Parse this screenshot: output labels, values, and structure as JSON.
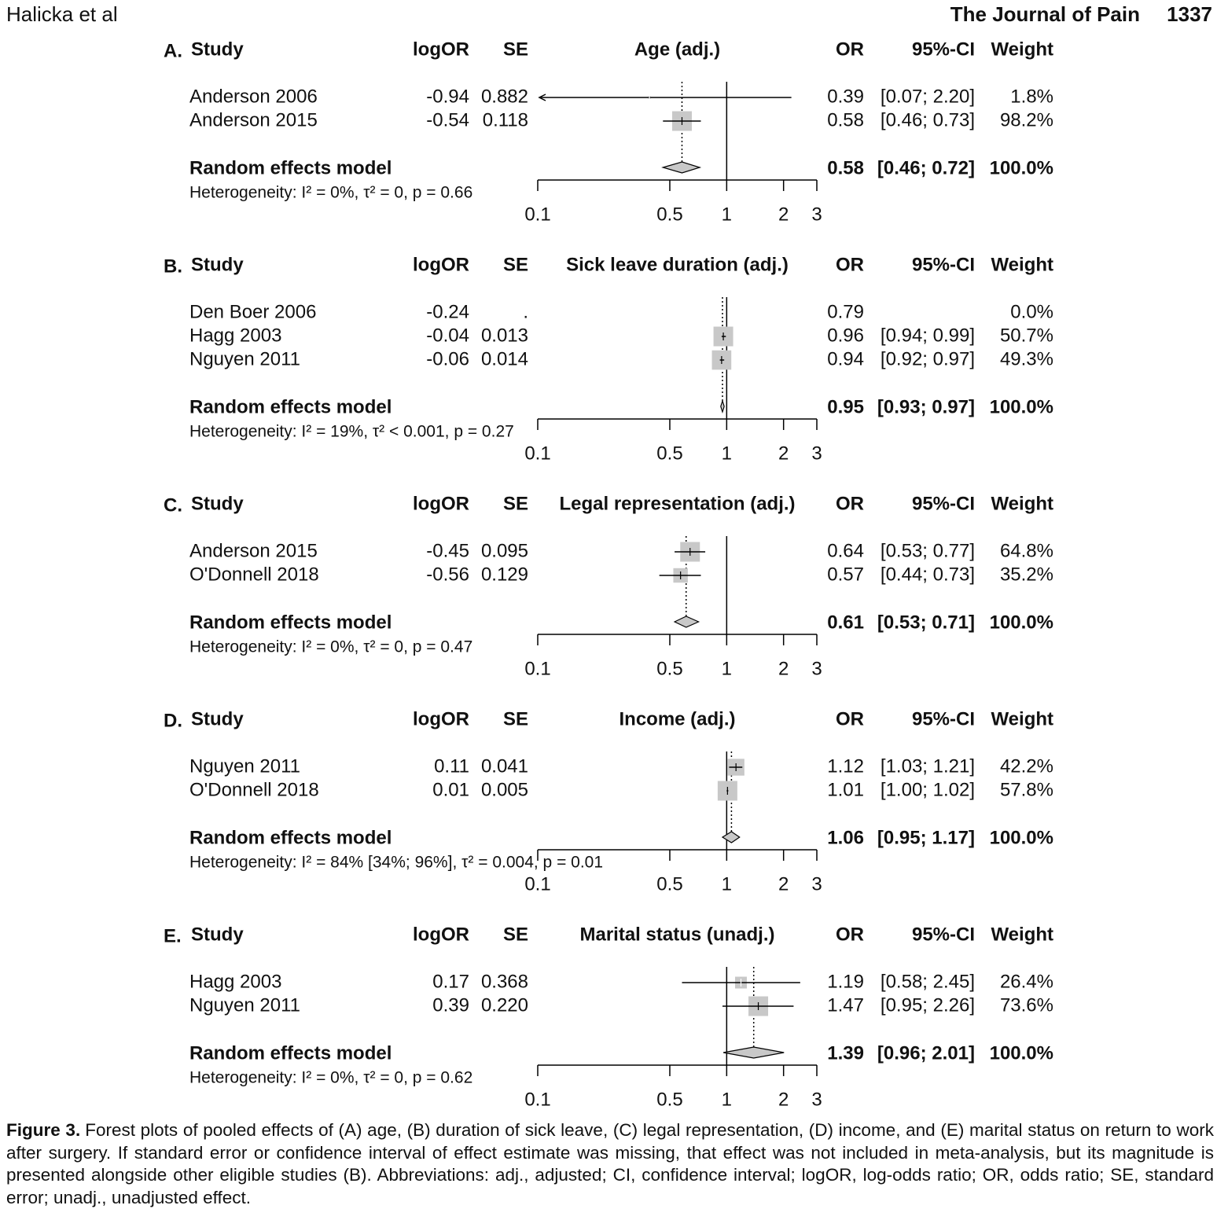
{
  "header": {
    "authors": "Halicka et al",
    "journal": "The Journal of Pain",
    "page": "1337"
  },
  "chart_data": [
    {
      "type": "forest",
      "label": "A.",
      "title": "Age (adj.)",
      "columns": {
        "study": "Study",
        "logOR": "logOR",
        "se": "SE",
        "or": "OR",
        "ci": "95%-CI",
        "weight": "Weight"
      },
      "studies": [
        {
          "name": "Anderson 2006",
          "logOR": -0.94,
          "se": "0.882",
          "or": 0.39,
          "ci_lower": 0.07,
          "ci_upper": 2.2,
          "ci_label": "[0.07; 2.20]",
          "weight": 1.8,
          "weight_label": "1.8%"
        },
        {
          "name": "Anderson 2015",
          "logOR": -0.54,
          "se": "0.118",
          "or": 0.58,
          "ci_lower": 0.46,
          "ci_upper": 0.73,
          "ci_label": "[0.46; 0.73]",
          "weight": 98.2,
          "weight_label": "98.2%"
        }
      ],
      "pooled": {
        "name": "Random effects model",
        "or": 0.58,
        "ci_lower": 0.46,
        "ci_upper": 0.72,
        "ci_label": "[0.46; 0.72]",
        "weight": 100,
        "weight_label": "100.0%"
      },
      "heterogeneity": "Heterogeneity: I² = 0%, τ² = 0, p = 0.66",
      "xlim": [
        0.1,
        3
      ],
      "xticks": [
        0.1,
        0.5,
        1,
        2,
        3
      ],
      "log_x": true,
      "reference_line": 1,
      "box_color": "#c8c8c8"
    },
    {
      "type": "forest",
      "label": "B.",
      "title": "Sick leave duration (adj.)",
      "columns": {
        "study": "Study",
        "logOR": "logOR",
        "se": "SE",
        "or": "OR",
        "ci": "95%-CI",
        "weight": "Weight"
      },
      "studies": [
        {
          "name": "Den Boer 2006",
          "logOR": -0.24,
          "se": ".",
          "or": 0.79,
          "ci_lower": null,
          "ci_upper": null,
          "ci_label": null,
          "weight": 0,
          "weight_label": "0.0%"
        },
        {
          "name": "Hagg 2003",
          "logOR": -0.04,
          "se": "0.013",
          "or": 0.96,
          "ci_lower": 0.94,
          "ci_upper": 0.99,
          "ci_label": "[0.94; 0.99]",
          "weight": 50.7,
          "weight_label": "50.7%"
        },
        {
          "name": "Nguyen 2011",
          "logOR": -0.06,
          "se": "0.014",
          "or": 0.94,
          "ci_lower": 0.92,
          "ci_upper": 0.97,
          "ci_label": "[0.92; 0.97]",
          "weight": 49.3,
          "weight_label": "49.3%"
        }
      ],
      "pooled": {
        "name": "Random effects model",
        "or": 0.95,
        "ci_lower": 0.93,
        "ci_upper": 0.97,
        "ci_label": "[0.93; 0.97]",
        "weight": 100,
        "weight_label": "100.0%"
      },
      "heterogeneity": "Heterogeneity: I² = 19%, τ² < 0.001, p = 0.27",
      "xlim": [
        0.1,
        3
      ],
      "xticks": [
        0.1,
        0.5,
        1,
        2,
        3
      ],
      "log_x": true,
      "reference_line": 1,
      "box_color": "#c8c8c8"
    },
    {
      "type": "forest",
      "label": "C.",
      "title": "Legal representation (adj.)",
      "columns": {
        "study": "Study",
        "logOR": "logOR",
        "se": "SE",
        "or": "OR",
        "ci": "95%-CI",
        "weight": "Weight"
      },
      "studies": [
        {
          "name": "Anderson 2015",
          "logOR": -0.45,
          "se": "0.095",
          "or": 0.64,
          "ci_lower": 0.53,
          "ci_upper": 0.77,
          "ci_label": "[0.53; 0.77]",
          "weight": 64.8,
          "weight_label": "64.8%"
        },
        {
          "name": "O'Donnell 2018",
          "logOR": -0.56,
          "se": "0.129",
          "or": 0.57,
          "ci_lower": 0.44,
          "ci_upper": 0.73,
          "ci_label": "[0.44; 0.73]",
          "weight": 35.2,
          "weight_label": "35.2%"
        }
      ],
      "pooled": {
        "name": "Random effects model",
        "or": 0.61,
        "ci_lower": 0.53,
        "ci_upper": 0.71,
        "ci_label": "[0.53; 0.71]",
        "weight": 100,
        "weight_label": "100.0%"
      },
      "heterogeneity": "Heterogeneity: I² = 0%, τ² = 0, p = 0.47",
      "xlim": [
        0.1,
        3
      ],
      "xticks": [
        0.1,
        0.5,
        1,
        2,
        3
      ],
      "log_x": true,
      "reference_line": 1,
      "box_color": "#c8c8c8"
    },
    {
      "type": "forest",
      "label": "D.",
      "title": "Income (adj.)",
      "columns": {
        "study": "Study",
        "logOR": "logOR",
        "se": "SE",
        "or": "OR",
        "ci": "95%-CI",
        "weight": "Weight"
      },
      "studies": [
        {
          "name": "Nguyen 2011",
          "logOR": 0.11,
          "se": "0.041",
          "or": 1.12,
          "ci_lower": 1.03,
          "ci_upper": 1.21,
          "ci_label": "[1.03; 1.21]",
          "weight": 42.2,
          "weight_label": "42.2%"
        },
        {
          "name": "O'Donnell 2018",
          "logOR": 0.01,
          "se": "0.005",
          "or": 1.01,
          "ci_lower": 1,
          "ci_upper": 1.02,
          "ci_label": "[1.00; 1.02]",
          "weight": 57.8,
          "weight_label": "57.8%"
        }
      ],
      "pooled": {
        "name": "Random effects model",
        "or": 1.06,
        "ci_lower": 0.95,
        "ci_upper": 1.17,
        "ci_label": "[0.95; 1.17]",
        "weight": 100,
        "weight_label": "100.0%"
      },
      "heterogeneity": "Heterogeneity: I² = 84% [34%; 96%], τ² = 0.004, p = 0.01",
      "xlim": [
        0.1,
        3
      ],
      "xticks": [
        0.1,
        0.5,
        1,
        2,
        3
      ],
      "log_x": true,
      "reference_line": 1,
      "box_color": "#c8c8c8"
    },
    {
      "type": "forest",
      "label": "E.",
      "title": "Marital status (unadj.)",
      "columns": {
        "study": "Study",
        "logOR": "logOR",
        "se": "SE",
        "or": "OR",
        "ci": "95%-CI",
        "weight": "Weight"
      },
      "studies": [
        {
          "name": "Hagg 2003",
          "logOR": 0.17,
          "se": "0.368",
          "or": 1.19,
          "ci_lower": 0.58,
          "ci_upper": 2.45,
          "ci_label": "[0.58; 2.45]",
          "weight": 26.4,
          "weight_label": "26.4%"
        },
        {
          "name": "Nguyen 2011",
          "logOR": 0.39,
          "se": "0.220",
          "or": 1.47,
          "ci_lower": 0.95,
          "ci_upper": 2.26,
          "ci_label": "[0.95; 2.26]",
          "weight": 73.6,
          "weight_label": "73.6%"
        }
      ],
      "pooled": {
        "name": "Random effects model",
        "or": 1.39,
        "ci_lower": 0.96,
        "ci_upper": 2.01,
        "ci_label": "[0.96; 2.01]",
        "weight": 100,
        "weight_label": "100.0%"
      },
      "heterogeneity": "Heterogeneity: I² = 0%, τ² = 0, p = 0.62",
      "xlim": [
        0.1,
        3
      ],
      "xticks": [
        0.1,
        0.5,
        1,
        2,
        3
      ],
      "log_x": true,
      "reference_line": 1,
      "box_color": "#c8c8c8"
    }
  ],
  "caption": {
    "label": "Figure 3.",
    "text": "Forest plots of pooled effects of (A) age, (B) duration of sick leave, (C) legal representation, (D) income, and (E) marital status on return to work after surgery. If standard error or confidence interval of effect estimate was missing, that effect was not included in meta-analysis, but its magnitude is presented alongside other eligible studies (B). Abbreviations: adj., adjusted; CI, confidence interval; logOR, log-odds ratio; OR, odds ratio; SE, standard error; unadj., unadjusted effect."
  }
}
